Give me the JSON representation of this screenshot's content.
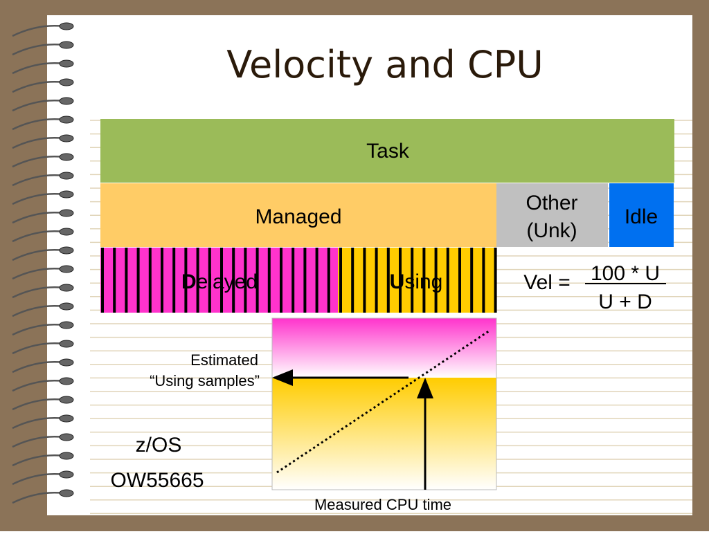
{
  "title": "Velocity and CPU",
  "blocks": {
    "task": "Task",
    "managed": "Managed",
    "other": "Other",
    "other_sub": "(Unk)",
    "idle": "Idle",
    "delayed": {
      "initial": "D",
      "rest": "elayed"
    },
    "using": {
      "initial": "U",
      "rest": "sing"
    }
  },
  "formula": {
    "lhs": "Vel =",
    "numerator": "100 * U",
    "denominator": "U + D"
  },
  "graph": {
    "estimated": "Estimated",
    "using_samples": "“Using samples”",
    "x_label": "Measured CPU time"
  },
  "notes": {
    "system": "z/OS",
    "apar": "OW55665"
  }
}
